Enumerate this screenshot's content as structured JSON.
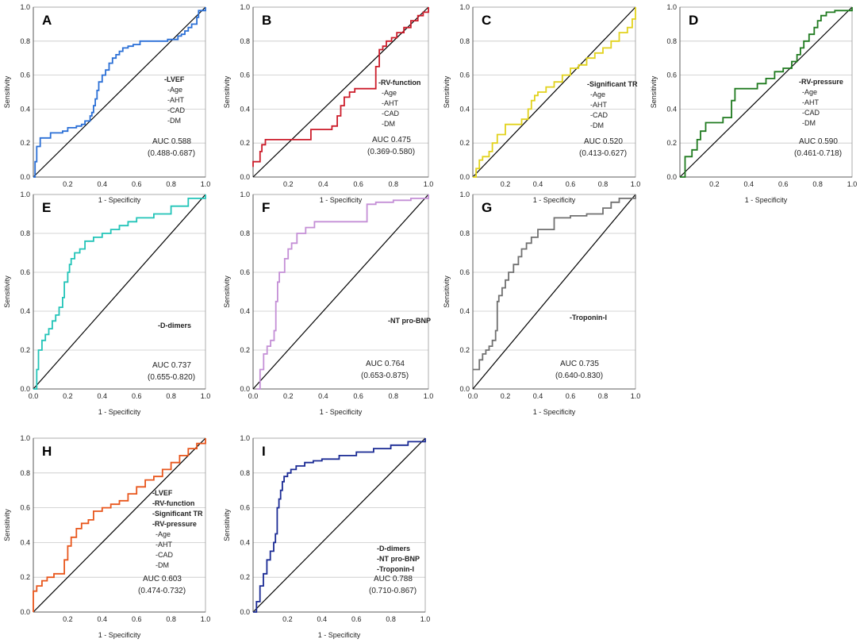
{
  "chart_data": [
    {
      "type": "line",
      "panel": "A",
      "color": "#2a6fd6",
      "xlabel": "1 - Specificity",
      "ylabel": "Sensitivity",
      "xlim": [
        0,
        1
      ],
      "ylim": [
        0,
        1
      ],
      "xticks": [
        "0.2",
        "0.4",
        "0.6",
        "0.8",
        "1.0"
      ],
      "yticks": [
        "0.0",
        "0.2",
        "0.4",
        "0.6",
        "0.8",
        "1.0"
      ],
      "legend": [
        {
          "text": "-LVEF",
          "bold": true
        },
        {
          "text": "-Age",
          "bold": false
        },
        {
          "text": "-AHT",
          "bold": false
        },
        {
          "text": "-CAD",
          "bold": false
        },
        {
          "text": "-DM",
          "bold": false
        }
      ],
      "auc": "AUC 0.588",
      "ci": "(0.488-0.687)",
      "roc": {
        "x": [
          0,
          0.01,
          0.01,
          0.02,
          0.02,
          0.04,
          0.04,
          0.1,
          0.1,
          0.17,
          0.2,
          0.25,
          0.28,
          0.3,
          0.33,
          0.34,
          0.35,
          0.36,
          0.37,
          0.38,
          0.4,
          0.42,
          0.44,
          0.46,
          0.48,
          0.5,
          0.52,
          0.55,
          0.58,
          0.62,
          0.66,
          0.72,
          0.78,
          0.82,
          0.84,
          0.86,
          0.88,
          0.9,
          0.92,
          0.95,
          0.96,
          1.0
        ],
        "y": [
          0,
          0.05,
          0.09,
          0.12,
          0.18,
          0.2,
          0.23,
          0.24,
          0.26,
          0.27,
          0.29,
          0.3,
          0.31,
          0.33,
          0.36,
          0.38,
          0.42,
          0.46,
          0.51,
          0.56,
          0.6,
          0.63,
          0.67,
          0.7,
          0.72,
          0.74,
          0.76,
          0.77,
          0.78,
          0.8,
          0.8,
          0.8,
          0.81,
          0.81,
          0.83,
          0.84,
          0.86,
          0.88,
          0.9,
          0.94,
          0.98,
          1.0
        ]
      }
    },
    {
      "type": "line",
      "panel": "B",
      "color": "#cc1c2a",
      "xlabel": "1 - Specificity",
      "ylabel": "Sensitivity",
      "xlim": [
        0,
        1
      ],
      "ylim": [
        0,
        1
      ],
      "xticks": [
        "0.2",
        "0.4",
        "0.6",
        "0.8",
        "1.0"
      ],
      "yticks": [
        "0.0",
        "0.2",
        "0.4",
        "0.6",
        "0.8",
        "1.0"
      ],
      "legend": [
        {
          "text": "-RV-function",
          "bold": true
        },
        {
          "text": "-Age",
          "bold": false
        },
        {
          "text": "-AHT",
          "bold": false
        },
        {
          "text": "-CAD",
          "bold": false
        },
        {
          "text": "-DM",
          "bold": false
        }
      ],
      "auc": "AUC 0.475",
      "ci": "(0.369-0.580)",
      "roc": {
        "x": [
          0,
          0.0,
          0.04,
          0.05,
          0.07,
          0.2,
          0.32,
          0.33,
          0.45,
          0.48,
          0.5,
          0.52,
          0.55,
          0.58,
          0.7,
          0.7,
          0.72,
          0.74,
          0.76,
          0.79,
          0.82,
          0.86,
          0.9,
          0.94,
          0.97,
          1.0
        ],
        "y": [
          0.06,
          0.09,
          0.15,
          0.19,
          0.22,
          0.22,
          0.22,
          0.28,
          0.3,
          0.36,
          0.42,
          0.47,
          0.5,
          0.52,
          0.55,
          0.65,
          0.75,
          0.77,
          0.8,
          0.82,
          0.85,
          0.88,
          0.92,
          0.95,
          0.97,
          1.0
        ]
      }
    },
    {
      "type": "line",
      "panel": "C",
      "color": "#e2d21c",
      "xlabel": "1 - Specificity",
      "ylabel": "Sensitivity",
      "xlim": [
        0,
        1
      ],
      "ylim": [
        0,
        1
      ],
      "xticks": [
        "0.2",
        "0.4",
        "0.6",
        "0.8",
        "1.0"
      ],
      "yticks": [
        "0.0",
        "0.2",
        "0.4",
        "0.6",
        "0.8",
        "1.0"
      ],
      "legend": [
        {
          "text": "-Significant TR",
          "bold": true
        },
        {
          "text": "-Age",
          "bold": false
        },
        {
          "text": "-AHT",
          "bold": false
        },
        {
          "text": "-CAD",
          "bold": false
        },
        {
          "text": "-DM",
          "bold": false
        }
      ],
      "auc": "AUC 0.520",
      "ci": "(0.413-0.627)",
      "roc": {
        "x": [
          0,
          0.02,
          0.04,
          0.06,
          0.1,
          0.12,
          0.15,
          0.2,
          0.3,
          0.34,
          0.36,
          0.38,
          0.4,
          0.45,
          0.5,
          0.55,
          0.6,
          0.65,
          0.7,
          0.75,
          0.8,
          0.85,
          0.9,
          0.95,
          0.98,
          1.0
        ],
        "y": [
          0,
          0.05,
          0.1,
          0.12,
          0.15,
          0.2,
          0.25,
          0.31,
          0.34,
          0.4,
          0.45,
          0.48,
          0.5,
          0.53,
          0.56,
          0.6,
          0.64,
          0.66,
          0.7,
          0.73,
          0.76,
          0.8,
          0.85,
          0.88,
          0.93,
          1.0
        ]
      }
    },
    {
      "type": "line",
      "panel": "D",
      "color": "#1f7a1f",
      "xlabel": "1 - Specificity",
      "ylabel": "Sensitivity",
      "xlim": [
        0,
        1
      ],
      "ylim": [
        0,
        1
      ],
      "xticks": [
        "0.2",
        "0.4",
        "0.6",
        "0.8",
        "1.0"
      ],
      "yticks": [
        "0.0",
        "0.2",
        "0.4",
        "0.6",
        "0.8",
        "1.0"
      ],
      "legend": [
        {
          "text": "-RV-pressure",
          "bold": true
        },
        {
          "text": "-Age",
          "bold": false
        },
        {
          "text": "-AHT",
          "bold": false
        },
        {
          "text": "-CAD",
          "bold": false
        },
        {
          "text": "-DM",
          "bold": false
        }
      ],
      "auc": "AUC 0.590",
      "ci": "(0.461-0.718)",
      "roc": {
        "x": [
          0,
          0.03,
          0.07,
          0.1,
          0.12,
          0.15,
          0.2,
          0.25,
          0.3,
          0.32,
          0.4,
          0.45,
          0.5,
          0.55,
          0.6,
          0.65,
          0.68,
          0.7,
          0.72,
          0.75,
          0.78,
          0.8,
          0.82,
          0.85,
          0.9,
          1.0
        ],
        "y": [
          0,
          0.12,
          0.16,
          0.22,
          0.27,
          0.32,
          0.32,
          0.35,
          0.45,
          0.52,
          0.52,
          0.55,
          0.58,
          0.62,
          0.64,
          0.68,
          0.72,
          0.76,
          0.8,
          0.84,
          0.88,
          0.92,
          0.95,
          0.97,
          0.98,
          1.0
        ]
      }
    },
    {
      "type": "line",
      "panel": "E",
      "color": "#22c4b8",
      "xlabel": "1 - Specificity",
      "ylabel": "Sensitivity",
      "xlim": [
        0,
        1
      ],
      "ylim": [
        0,
        1
      ],
      "xticks": [
        "0.0",
        "0.2",
        "0.4",
        "0.6",
        "0.8",
        "1.0"
      ],
      "yticks": [
        "0.0",
        "0.2",
        "0.4",
        "0.6",
        "0.8",
        "1.0"
      ],
      "legend": [
        {
          "text": "-D-dimers",
          "bold": true
        }
      ],
      "auc": "AUC 0.737",
      "ci": "(0.655-0.820)",
      "roc": {
        "x": [
          0,
          0.02,
          0.03,
          0.05,
          0.07,
          0.09,
          0.11,
          0.13,
          0.15,
          0.17,
          0.18,
          0.2,
          0.21,
          0.22,
          0.24,
          0.27,
          0.3,
          0.35,
          0.4,
          0.45,
          0.5,
          0.55,
          0.6,
          0.7,
          0.8,
          0.9,
          1.0
        ],
        "y": [
          0,
          0.1,
          0.2,
          0.25,
          0.28,
          0.31,
          0.35,
          0.38,
          0.42,
          0.47,
          0.55,
          0.6,
          0.64,
          0.67,
          0.7,
          0.72,
          0.76,
          0.78,
          0.8,
          0.82,
          0.84,
          0.86,
          0.88,
          0.9,
          0.94,
          0.98,
          1.0
        ]
      }
    },
    {
      "type": "line",
      "panel": "F",
      "color": "#c48fd6",
      "xlabel": "1 - Specificity",
      "ylabel": "Sensitivity",
      "xlim": [
        0,
        1
      ],
      "ylim": [
        0,
        1
      ],
      "xticks": [
        "0.0",
        "0.2",
        "0.4",
        "0.6",
        "0.8",
        "1.0"
      ],
      "yticks": [
        "0.0",
        "0.2",
        "0.4",
        "0.6",
        "0.8",
        "1.0"
      ],
      "legend": [
        {
          "text": "-NT pro-BNP",
          "bold": true
        }
      ],
      "auc": "AUC 0.764",
      "ci": "(0.653-0.875)",
      "roc": {
        "x": [
          0.02,
          0.04,
          0.06,
          0.08,
          0.1,
          0.12,
          0.13,
          0.14,
          0.15,
          0.18,
          0.2,
          0.22,
          0.25,
          0.3,
          0.35,
          0.45,
          0.6,
          0.65,
          0.7,
          0.8,
          0.9,
          1.0
        ],
        "y": [
          0,
          0.1,
          0.18,
          0.22,
          0.25,
          0.3,
          0.45,
          0.55,
          0.6,
          0.67,
          0.72,
          0.75,
          0.8,
          0.83,
          0.86,
          0.86,
          0.86,
          0.95,
          0.96,
          0.97,
          0.98,
          1.0
        ]
      }
    },
    {
      "type": "line",
      "panel": "G",
      "color": "#707070",
      "xlabel": "1 - Specificity",
      "ylabel": "Sensitivity",
      "xlim": [
        0,
        1
      ],
      "ylim": [
        0,
        1
      ],
      "xticks": [
        "0.0",
        "0.2",
        "0.4",
        "0.6",
        "0.8",
        "1.0"
      ],
      "yticks": [
        "0.0",
        "0.2",
        "0.4",
        "0.6",
        "0.8",
        "1.0"
      ],
      "legend": [
        {
          "text": "-Troponin-I",
          "bold": true
        }
      ],
      "auc": "AUC 0.735",
      "ci": "(0.640-0.830)",
      "roc": {
        "x": [
          0,
          0.0,
          0.04,
          0.06,
          0.08,
          0.1,
          0.12,
          0.14,
          0.15,
          0.16,
          0.18,
          0.2,
          0.22,
          0.25,
          0.28,
          0.3,
          0.33,
          0.36,
          0.4,
          0.5,
          0.6,
          0.7,
          0.8,
          0.85,
          0.9,
          1.0
        ],
        "y": [
          0.1,
          0.1,
          0.15,
          0.18,
          0.2,
          0.22,
          0.25,
          0.3,
          0.45,
          0.48,
          0.52,
          0.56,
          0.6,
          0.64,
          0.68,
          0.72,
          0.75,
          0.78,
          0.82,
          0.88,
          0.89,
          0.9,
          0.93,
          0.96,
          0.98,
          1.0
        ]
      }
    },
    {
      "type": "line",
      "panel": "H",
      "color": "#e8561c",
      "xlabel": "1 - Specificity",
      "ylabel": "Sensitivity",
      "xlim": [
        0,
        1
      ],
      "ylim": [
        0,
        1
      ],
      "xticks": [
        "0.2",
        "0.4",
        "0.6",
        "0.8",
        "1.0"
      ],
      "yticks": [
        "0.0",
        "0.2",
        "0.4",
        "0.6",
        "0.8",
        "1.0"
      ],
      "legend": [
        {
          "text": "-LVEF",
          "bold": true
        },
        {
          "text": "-RV-function",
          "bold": true
        },
        {
          "text": "-Significant TR",
          "bold": true
        },
        {
          "text": "-RV-pressure",
          "bold": true
        },
        {
          "text": "-Age",
          "bold": false
        },
        {
          "text": "-AHT",
          "bold": false
        },
        {
          "text": "-CAD",
          "bold": false
        },
        {
          "text": "-DM",
          "bold": false
        }
      ],
      "auc": "AUC 0.603",
      "ci": "(0.474-0.732)",
      "roc": {
        "x": [
          0,
          0.0,
          0.02,
          0.05,
          0.08,
          0.12,
          0.18,
          0.2,
          0.22,
          0.25,
          0.28,
          0.32,
          0.35,
          0.4,
          0.45,
          0.5,
          0.55,
          0.6,
          0.65,
          0.7,
          0.75,
          0.8,
          0.85,
          0.9,
          0.95,
          1.0
        ],
        "y": [
          0,
          0.12,
          0.15,
          0.18,
          0.2,
          0.22,
          0.3,
          0.38,
          0.43,
          0.48,
          0.51,
          0.53,
          0.58,
          0.6,
          0.62,
          0.64,
          0.68,
          0.72,
          0.76,
          0.78,
          0.82,
          0.86,
          0.9,
          0.94,
          0.97,
          1.0
        ]
      }
    },
    {
      "type": "line",
      "panel": "I",
      "color": "#1a2a94",
      "xlabel": "1 - Specificity",
      "ylabel": "Sensitivity",
      "xlim": [
        0,
        1
      ],
      "ylim": [
        0,
        1
      ],
      "xticks": [
        "0.2",
        "0.4",
        "0.6",
        "0.8",
        "1.0"
      ],
      "yticks": [
        "0.0",
        "0.2",
        "0.4",
        "0.6",
        "0.8",
        "1.0"
      ],
      "legend": [
        {
          "text": "-D-dimers",
          "bold": true
        },
        {
          "text": "-NT pro-BNP",
          "bold": true
        },
        {
          "text": "-Troponin-I",
          "bold": true
        }
      ],
      "auc": "AUC 0.788",
      "ci": "(0.710-0.867)",
      "roc": {
        "x": [
          0,
          0.02,
          0.04,
          0.06,
          0.08,
          0.1,
          0.12,
          0.13,
          0.14,
          0.15,
          0.16,
          0.17,
          0.18,
          0.2,
          0.22,
          0.25,
          0.3,
          0.35,
          0.4,
          0.5,
          0.6,
          0.7,
          0.8,
          0.9,
          1.0
        ],
        "y": [
          0,
          0.06,
          0.15,
          0.22,
          0.3,
          0.35,
          0.4,
          0.45,
          0.6,
          0.65,
          0.7,
          0.75,
          0.78,
          0.8,
          0.82,
          0.84,
          0.86,
          0.87,
          0.88,
          0.9,
          0.92,
          0.94,
          0.96,
          0.98,
          1.0
        ]
      }
    }
  ]
}
